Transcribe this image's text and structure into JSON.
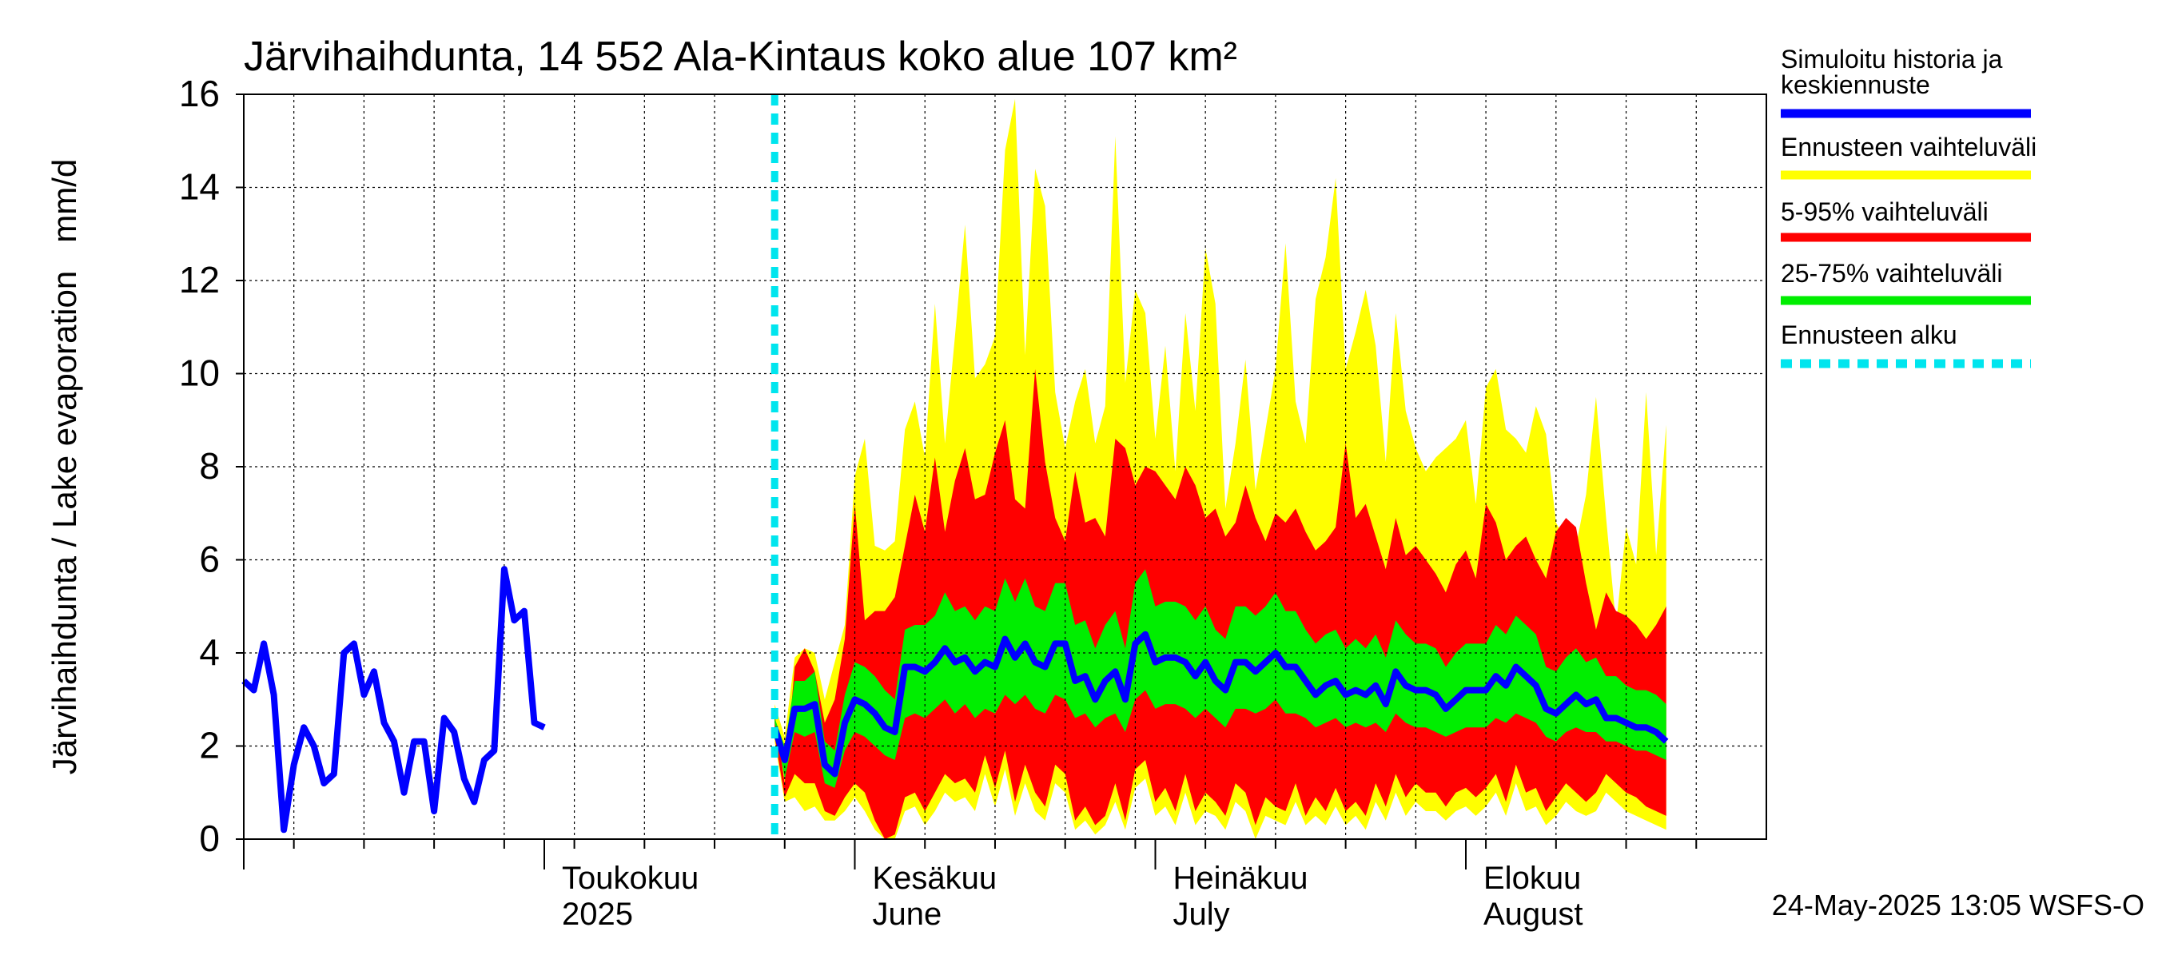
{
  "chart_data": {
    "type": "area",
    "title": "Järvihaihdunta, 14 552 Ala-Kintaus koko alue 107 km²",
    "ylabel": "Järvihaihdunta / Lake evaporation   mm/d",
    "ylim": [
      0,
      16
    ],
    "yticks": [
      0,
      2,
      4,
      6,
      8,
      10,
      12,
      14,
      16
    ],
    "x_start": "2025-04-01",
    "x_end": "2025-08-31",
    "grid": true,
    "month_labels": [
      {
        "date": "2025-04-01",
        "fi": "",
        "en": ""
      },
      {
        "date": "2025-05-01",
        "fi": "Toukokuu",
        "en": "2025"
      },
      {
        "date": "2025-06-01",
        "fi": "Kesäkuu",
        "en": "June"
      },
      {
        "date": "2025-07-01",
        "fi": "Heinäkuu",
        "en": "July"
      },
      {
        "date": "2025-08-01",
        "fi": "Elokuu",
        "en": "August"
      }
    ],
    "forecast_start": "2025-05-24",
    "legend": {
      "position": "right",
      "entries": [
        {
          "label": "Simuloitu historia ja keskiennuste",
          "label_line1": "Simuloitu historia ja",
          "label_line2": "keskiennuste",
          "color": "#0000ff",
          "style": "solid"
        },
        {
          "label": "Ennusteen vaihteluväli",
          "color": "#ffff00",
          "style": "solid"
        },
        {
          "label": "5-95% vaihteluväli",
          "color": "#ff0000",
          "style": "solid"
        },
        {
          "label": "25-75% vaihteluväli",
          "color": "#00ee00",
          "style": "solid"
        },
        {
          "label": "Ennusteen alku",
          "color": "#00e5ee",
          "style": "dashed"
        }
      ]
    },
    "history": {
      "name": "Simuloitu historia ja keskiennuste",
      "start": "2025-04-01",
      "values": [
        3.4,
        3.2,
        4.2,
        3.1,
        0.2,
        1.6,
        2.4,
        2.0,
        1.2,
        1.4,
        4.0,
        4.2,
        3.1,
        3.6,
        2.5,
        2.1,
        1.0,
        2.1,
        2.1,
        0.6,
        2.6,
        2.3,
        1.3,
        0.8,
        1.7,
        1.9,
        5.8,
        4.7,
        4.9,
        2.5,
        2.4
      ]
    },
    "forecast": {
      "start": "2025-05-24",
      "median": [
        2.4,
        1.7,
        2.8,
        2.8,
        2.9,
        1.6,
        1.4,
        2.5,
        3.0,
        2.9,
        2.7,
        2.4,
        2.3,
        3.7,
        3.7,
        3.6,
        3.8,
        4.1,
        3.8,
        3.9,
        3.6,
        3.8,
        3.7,
        4.3,
        3.9,
        4.2,
        3.8,
        3.7,
        4.2,
        4.2,
        3.4,
        3.5,
        3.0,
        3.4,
        3.6,
        3.0,
        4.2,
        4.4,
        3.8,
        3.9,
        3.9,
        3.8,
        3.5,
        3.8,
        3.4,
        3.2,
        3.8,
        3.8,
        3.6,
        3.8,
        4.0,
        3.7,
        3.7,
        3.4,
        3.1,
        3.3,
        3.4,
        3.1,
        3.2,
        3.1,
        3.3,
        2.9,
        3.6,
        3.3,
        3.2,
        3.2,
        3.1,
        2.8,
        3.0,
        3.2,
        3.2,
        3.2,
        3.5,
        3.3,
        3.7,
        3.5,
        3.3,
        2.8,
        2.7,
        2.9,
        3.1,
        2.9,
        3.0,
        2.6,
        2.6,
        2.5,
        2.4,
        2.4,
        2.3,
        2.1
      ],
      "p25": [
        2.5,
        1.3,
        2.3,
        2.2,
        2.3,
        1.2,
        1.1,
        1.9,
        2.3,
        2.2,
        2.0,
        1.8,
        1.7,
        2.6,
        2.7,
        2.6,
        2.8,
        3.0,
        2.7,
        2.9,
        2.6,
        2.8,
        2.7,
        3.1,
        2.9,
        3.1,
        2.8,
        2.7,
        3.1,
        3.0,
        2.6,
        2.7,
        2.4,
        2.6,
        2.7,
        2.3,
        3.0,
        3.2,
        2.8,
        2.9,
        2.9,
        2.8,
        2.6,
        2.8,
        2.6,
        2.4,
        2.8,
        2.8,
        2.7,
        2.8,
        3.0,
        2.7,
        2.7,
        2.6,
        2.4,
        2.5,
        2.6,
        2.4,
        2.5,
        2.4,
        2.5,
        2.3,
        2.7,
        2.5,
        2.4,
        2.4,
        2.3,
        2.2,
        2.3,
        2.4,
        2.4,
        2.4,
        2.6,
        2.5,
        2.7,
        2.6,
        2.5,
        2.2,
        2.1,
        2.3,
        2.4,
        2.3,
        2.3,
        2.1,
        2.1,
        2.0,
        1.9,
        1.9,
        1.8,
        1.7
      ],
      "p75": [
        2.6,
        2.0,
        3.4,
        3.4,
        3.6,
        2.1,
        1.9,
        3.1,
        3.8,
        3.7,
        3.5,
        3.2,
        3.0,
        4.5,
        4.6,
        4.6,
        4.8,
        5.3,
        4.9,
        5.0,
        4.7,
        5.0,
        4.9,
        5.6,
        5.1,
        5.6,
        5.0,
        4.9,
        5.5,
        5.5,
        4.6,
        4.7,
        4.1,
        4.6,
        4.9,
        4.1,
        5.5,
        5.8,
        5.0,
        5.1,
        5.1,
        5.0,
        4.7,
        5.0,
        4.5,
        4.3,
        5.0,
        5.0,
        4.8,
        5.0,
        5.3,
        4.9,
        4.9,
        4.5,
        4.2,
        4.4,
        4.5,
        4.1,
        4.3,
        4.1,
        4.4,
        3.9,
        4.7,
        4.4,
        4.2,
        4.2,
        4.1,
        3.7,
        4.0,
        4.2,
        4.2,
        4.2,
        4.6,
        4.4,
        4.8,
        4.6,
        4.4,
        3.7,
        3.6,
        3.9,
        4.1,
        3.8,
        3.9,
        3.5,
        3.5,
        3.3,
        3.2,
        3.2,
        3.1,
        2.9
      ],
      "p05": [
        2.2,
        0.9,
        1.4,
        1.2,
        1.2,
        0.6,
        0.5,
        0.9,
        1.2,
        1.0,
        0.4,
        0.0,
        0.1,
        0.9,
        1.0,
        0.6,
        1.0,
        1.4,
        1.2,
        1.3,
        1.0,
        1.8,
        1.1,
        1.9,
        0.8,
        1.6,
        1.0,
        0.7,
        1.6,
        1.4,
        0.4,
        0.7,
        0.3,
        0.5,
        1.2,
        0.4,
        1.5,
        1.7,
        0.8,
        1.1,
        0.6,
        1.4,
        0.6,
        1.0,
        0.8,
        0.5,
        1.2,
        1.0,
        0.3,
        0.9,
        0.7,
        0.6,
        1.2,
        0.5,
        0.9,
        0.6,
        1.1,
        0.6,
        0.8,
        0.5,
        1.2,
        0.7,
        1.4,
        0.9,
        1.2,
        1.0,
        1.0,
        0.7,
        1.0,
        1.1,
        0.9,
        1.1,
        1.4,
        0.8,
        1.6,
        1.0,
        1.1,
        0.6,
        0.9,
        1.2,
        1.0,
        0.8,
        1.0,
        1.4,
        1.2,
        1.0,
        0.9,
        0.7,
        0.6,
        0.5
      ],
      "p95": [
        2.7,
        1.2,
        3.7,
        4.1,
        3.6,
        2.5,
        3.0,
        4.3,
        7.2,
        4.7,
        4.9,
        4.9,
        5.2,
        6.3,
        7.4,
        6.6,
        8.2,
        6.6,
        7.7,
        8.4,
        7.3,
        7.4,
        8.3,
        9.0,
        7.3,
        7.1,
        10.1,
        8.1,
        6.9,
        6.4,
        7.9,
        6.8,
        6.9,
        6.5,
        8.6,
        8.4,
        7.6,
        8.0,
        7.9,
        7.6,
        7.3,
        8.0,
        7.6,
        6.9,
        7.1,
        6.5,
        6.8,
        7.6,
        6.9,
        6.4,
        7.0,
        6.8,
        7.1,
        6.6,
        6.2,
        6.4,
        6.7,
        8.5,
        6.9,
        7.2,
        6.5,
        5.8,
        6.9,
        6.1,
        6.3,
        6.0,
        5.7,
        5.3,
        5.9,
        6.2,
        5.6,
        7.2,
        6.8,
        6.0,
        6.3,
        6.5,
        6.0,
        5.6,
        6.6,
        6.9,
        6.7,
        5.5,
        4.5,
        5.3,
        4.9,
        4.8,
        4.6,
        4.3,
        4.6,
        5.0
      ],
      "min": [
        2.1,
        0.8,
        0.9,
        0.6,
        0.7,
        0.4,
        0.4,
        0.6,
        0.9,
        0.6,
        0.2,
        0.0,
        0.0,
        0.6,
        0.7,
        0.3,
        0.6,
        1.0,
        0.8,
        0.9,
        0.6,
        1.4,
        0.7,
        1.5,
        0.5,
        1.2,
        0.6,
        0.4,
        1.2,
        1.0,
        0.2,
        0.4,
        0.1,
        0.3,
        0.8,
        0.2,
        1.1,
        1.3,
        0.5,
        0.7,
        0.3,
        1.0,
        0.3,
        0.6,
        0.5,
        0.2,
        0.8,
        0.6,
        0.0,
        0.5,
        0.4,
        0.3,
        0.8,
        0.3,
        0.5,
        0.3,
        0.7,
        0.3,
        0.5,
        0.2,
        0.8,
        0.4,
        1.0,
        0.5,
        0.8,
        0.6,
        0.6,
        0.4,
        0.6,
        0.7,
        0.5,
        0.7,
        1.0,
        0.5,
        1.2,
        0.6,
        0.7,
        0.3,
        0.5,
        0.8,
        0.6,
        0.5,
        0.6,
        1.0,
        0.8,
        0.6,
        0.5,
        0.4,
        0.3,
        0.2
      ],
      "max": [
        2.9,
        2.2,
        3.9,
        4.1,
        4.0,
        3.0,
        3.8,
        4.6,
        7.8,
        8.6,
        6.3,
        6.2,
        6.4,
        8.8,
        9.4,
        8.2,
        11.5,
        8.5,
        10.8,
        13.2,
        9.9,
        10.2,
        10.8,
        14.8,
        15.9,
        10.4,
        14.4,
        13.6,
        9.6,
        8.4,
        9.4,
        10.1,
        8.5,
        9.3,
        15.1,
        9.8,
        11.8,
        11.3,
        8.6,
        10.6,
        7.9,
        11.3,
        9.2,
        12.7,
        11.5,
        7.1,
        8.5,
        10.3,
        7.5,
        8.8,
        10.1,
        12.8,
        9.4,
        8.5,
        11.6,
        12.5,
        14.2,
        10.1,
        10.9,
        11.8,
        10.6,
        8.1,
        11.3,
        9.2,
        8.4,
        7.9,
        8.2,
        8.4,
        8.6,
        9.0,
        7.2,
        9.7,
        10.1,
        8.8,
        8.6,
        8.3,
        9.3,
        8.7,
        6.8,
        6.4,
        6.3,
        7.4,
        9.5,
        6.9,
        4.6,
        6.7,
        5.9,
        9.6,
        6.1,
        8.9
      ]
    }
  },
  "footer": {
    "timestamp": "24-May-2025 13:05 WSFS-O"
  }
}
